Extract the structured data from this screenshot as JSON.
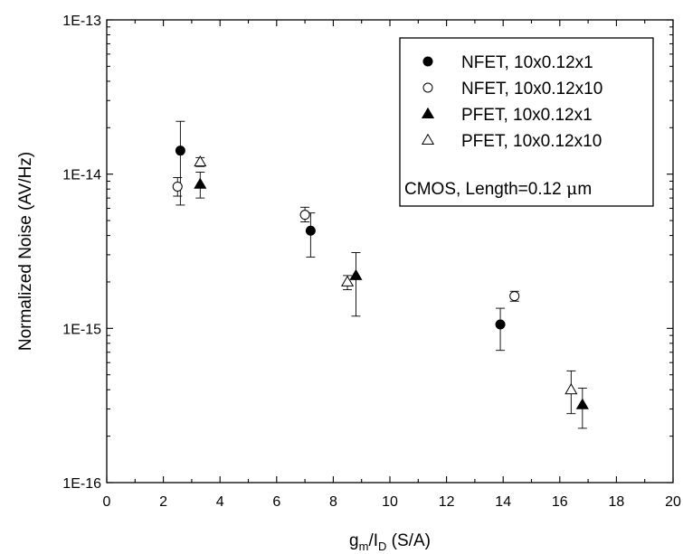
{
  "chart_data": {
    "type": "scatter",
    "xlabel": {
      "main": "g",
      "sub1": "m",
      "mid": "/I",
      "sub2": "D",
      "unit": " (S/A)"
    },
    "ylabel": "Normalized Noise (AV/Hz)",
    "xlim": [
      0,
      20
    ],
    "ylim": [
      1e-16,
      1e-13
    ],
    "yscale": "log",
    "grid": false,
    "legend_position": "top-right",
    "xticks": [
      "0",
      "2",
      "4",
      "6",
      "8",
      "10",
      "12",
      "14",
      "16",
      "18",
      "20"
    ],
    "yticks": [
      "1E-16",
      "1E-15",
      "1E-14",
      "1E-13"
    ],
    "annotation": {
      "prefix": "CMOS, Length=0.12 ",
      "mu": "μ",
      "suffix": "m"
    },
    "series": [
      {
        "name": "NFET, 10x0.12x1",
        "marker": "filled-circle",
        "points": [
          {
            "x": 2.6,
            "y": 1.42e-14,
            "lo": 6.3e-15,
            "hi": 2.2e-14
          },
          {
            "x": 7.2,
            "y": 4.3e-15,
            "lo": 2.9e-15,
            "hi": 5.6e-15
          },
          {
            "x": 13.9,
            "y": 1.06e-15,
            "lo": 7.2e-16,
            "hi": 1.35e-15
          }
        ]
      },
      {
        "name": "NFET, 10x0.12x10",
        "marker": "open-circle",
        "points": [
          {
            "x": 2.5,
            "y": 8.3e-15,
            "lo": 7.2e-15,
            "hi": 9.5e-15
          },
          {
            "x": 7.0,
            "y": 5.45e-15,
            "lo": 4.9e-15,
            "hi": 6.1e-15
          },
          {
            "x": 14.4,
            "y": 1.62e-15,
            "lo": 1.5e-15,
            "hi": 1.74e-15
          }
        ]
      },
      {
        "name": "PFET, 10x0.12x1",
        "marker": "filled-triangle",
        "points": [
          {
            "x": 3.3,
            "y": 8.6e-15,
            "lo": 7e-15,
            "hi": 1.03e-14
          },
          {
            "x": 8.8,
            "y": 2.2e-15,
            "lo": 1.2e-15,
            "hi": 3.1e-15
          },
          {
            "x": 16.8,
            "y": 3.2e-16,
            "lo": 2.25e-16,
            "hi": 4.1e-16
          }
        ]
      },
      {
        "name": "PFET, 10x0.12x10",
        "marker": "open-triangle",
        "points": [
          {
            "x": 3.3,
            "y": 1.2e-14,
            "lo": 1.12e-14,
            "hi": 1.28e-14
          },
          {
            "x": 8.5,
            "y": 2e-15,
            "lo": 1.78e-15,
            "hi": 2.2e-15
          },
          {
            "x": 16.4,
            "y": 4e-16,
            "lo": 2.8e-16,
            "hi": 5.3e-16
          }
        ]
      }
    ]
  }
}
